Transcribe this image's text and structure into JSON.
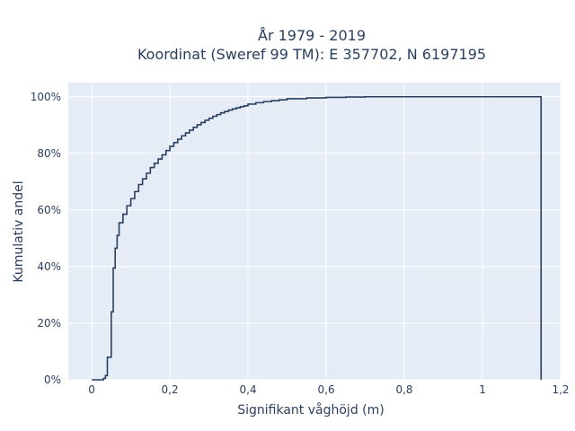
{
  "chart_data": {
    "type": "line",
    "title_line1": "År 1979 - 2019",
    "title_line2": "Koordinat (Sweref 99 TM): E 357702, N 6197195",
    "xlabel": "Signifikant våghöjd (m)",
    "ylabel": "Kumulativ andel",
    "xlim": [
      -0.06,
      1.2
    ],
    "ylim": [
      0,
      1.05
    ],
    "x_ticks": [
      0,
      0.2,
      0.4,
      0.6,
      0.8,
      1,
      1.2
    ],
    "x_tick_labels": [
      "0",
      "0,2",
      "0,4",
      "0,6",
      "0,8",
      "1",
      "1,2"
    ],
    "y_ticks": [
      0,
      0.2,
      0.4,
      0.6,
      0.8,
      1.0
    ],
    "y_tick_labels": [
      "0%",
      "20%",
      "40%",
      "60%",
      "80%",
      "100%"
    ],
    "grid": true,
    "line_color": "#2a3f5f",
    "plot_bg": "#e5ecf6",
    "series": [
      {
        "step": "hv",
        "x": [
          0,
          0.03,
          0.035,
          0.04,
          0.045,
          0.05,
          0.055,
          0.06,
          0.065,
          0.07,
          0.08,
          0.09,
          0.1,
          0.11,
          0.12,
          0.13,
          0.14,
          0.15,
          0.16,
          0.17,
          0.18,
          0.19,
          0.2,
          0.21,
          0.22,
          0.23,
          0.24,
          0.25,
          0.26,
          0.27,
          0.28,
          0.29,
          0.3,
          0.31,
          0.32,
          0.33,
          0.34,
          0.35,
          0.36,
          0.37,
          0.38,
          0.39,
          0.4,
          0.42,
          0.44,
          0.46,
          0.48,
          0.5,
          0.55,
          0.6,
          0.65,
          0.7,
          0.8,
          0.9,
          1.0,
          1.1,
          1.15,
          1.15
        ],
        "y": [
          0,
          0.005,
          0.015,
          0.08,
          0.08,
          0.24,
          0.395,
          0.465,
          0.51,
          0.555,
          0.585,
          0.615,
          0.64,
          0.665,
          0.69,
          0.71,
          0.73,
          0.75,
          0.765,
          0.78,
          0.795,
          0.81,
          0.825,
          0.838,
          0.85,
          0.862,
          0.872,
          0.882,
          0.892,
          0.901,
          0.909,
          0.917,
          0.924,
          0.931,
          0.937,
          0.943,
          0.948,
          0.953,
          0.957,
          0.961,
          0.965,
          0.968,
          0.974,
          0.979,
          0.983,
          0.986,
          0.989,
          0.993,
          0.996,
          0.998,
          0.999,
          1.0,
          1.0,
          1.0,
          1.0,
          1.0,
          1.0,
          0
        ]
      }
    ]
  }
}
